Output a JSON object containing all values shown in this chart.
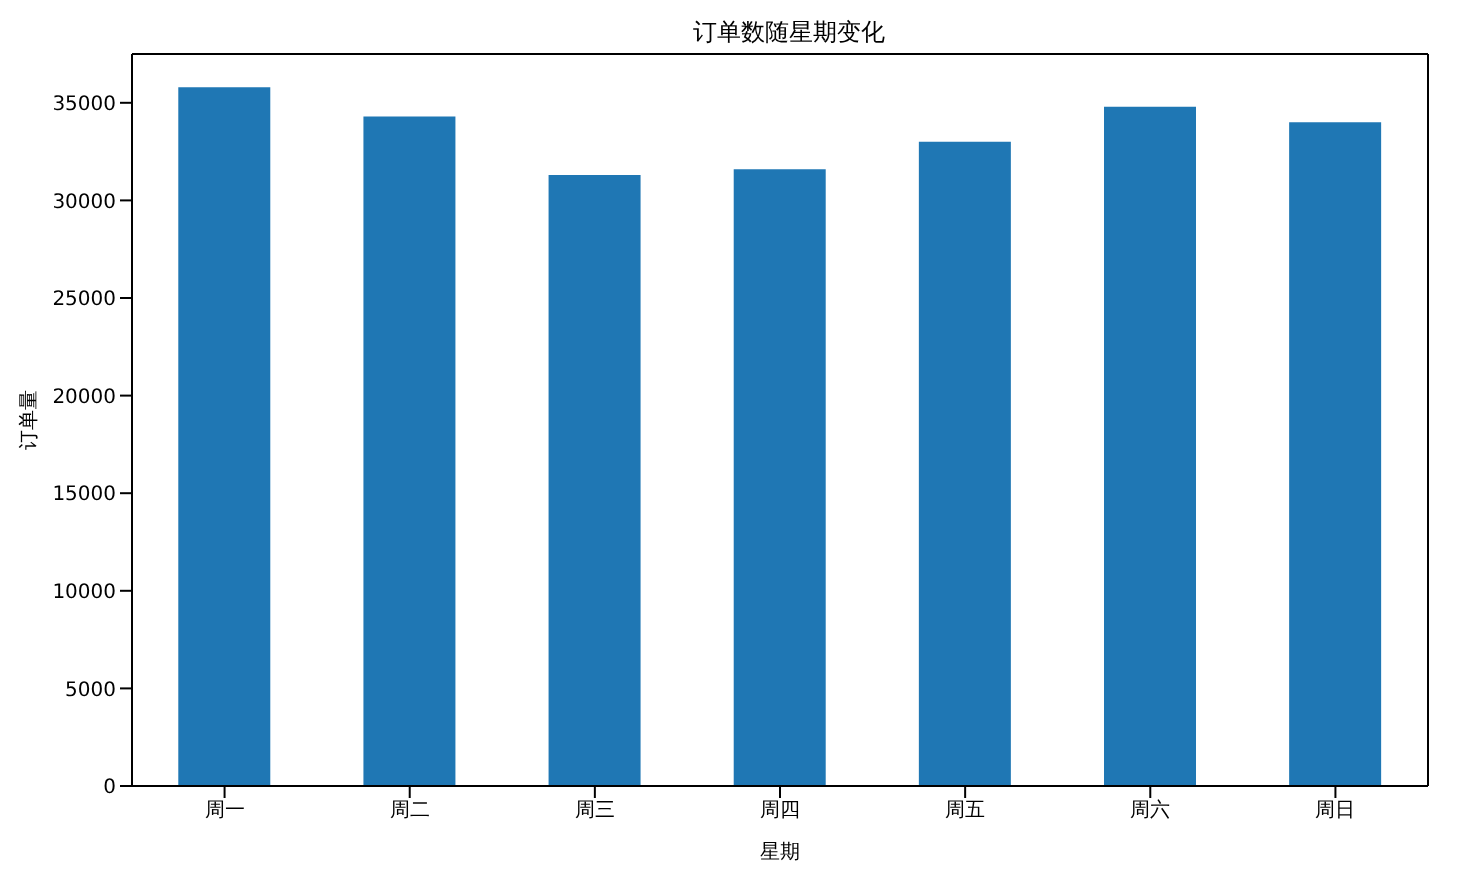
{
  "chart_data": {
    "type": "bar",
    "title": "订单数随星期变化",
    "xlabel": "星期",
    "ylabel": "订单量",
    "categories": [
      "周一",
      "周二",
      "周三",
      "周四",
      "周五",
      "周六",
      "周日"
    ],
    "values": [
      35800,
      34300,
      31300,
      31600,
      33000,
      34800,
      34000
    ],
    "color": "#1f77b4",
    "ylim": [
      0,
      37500
    ],
    "yticks": [
      0,
      5000,
      10000,
      15000,
      20000,
      25000,
      30000,
      35000
    ],
    "grid": false
  }
}
